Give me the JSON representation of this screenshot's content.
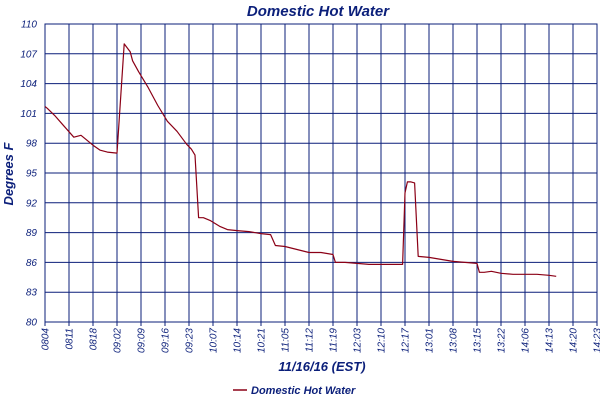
{
  "chart_data": {
    "type": "line",
    "title": "Domestic Hot Water",
    "xlabel": "11/16/16 (EST)",
    "ylabel": "Degrees F",
    "ylim": [
      80,
      110
    ],
    "yticks": [
      "80",
      "83",
      "86",
      "89",
      "92",
      "95",
      "98",
      "101",
      "104",
      "107",
      "110"
    ],
    "xticks": [
      "0804",
      "0811",
      "0818",
      "09:02",
      "09:09",
      "09:16",
      "09:23",
      "10:07",
      "10:14",
      "10:21",
      "11:05",
      "11:12",
      "11:19",
      "12:03",
      "12:10",
      "12:17",
      "13:01",
      "13:08",
      "13:15",
      "13:22",
      "14:06",
      "14:13",
      "14:20",
      "14:23"
    ],
    "grid": true,
    "legend_position": "bottom",
    "colors": {
      "line": "#8b0016",
      "grid": "#0b1f7a",
      "text": "#0b1f7a"
    },
    "series": [
      {
        "name": "Domestic Hot Water",
        "x": [
          0,
          0.1,
          0.4,
          0.8,
          1.2,
          1.5,
          2.0,
          2.3,
          2.6,
          3.0,
          3.3,
          3.55,
          3.65,
          3.9,
          4.3,
          4.7,
          5.1,
          5.5,
          5.9,
          6.1,
          6.25,
          6.4,
          6.6,
          6.9,
          7.3,
          7.6,
          8.0,
          8.5,
          9.0,
          9.4,
          9.6,
          10.0,
          10.5,
          11.0,
          11.5,
          12.0,
          12.1,
          12.5,
          13.0,
          13.5,
          14.0,
          14.4,
          14.9,
          15.0,
          15.1,
          15.25,
          15.4,
          15.55,
          16.0,
          16.5,
          17.0,
          17.5,
          18.0,
          18.1,
          18.3,
          18.6,
          19.0,
          19.5,
          20.0,
          20.5,
          21.0,
          21.3
        ],
        "values": [
          101.7,
          101.5,
          100.8,
          99.7,
          98.6,
          98.8,
          97.8,
          97.3,
          97.1,
          97.0,
          108.0,
          107.2,
          106.3,
          105.2,
          103.6,
          101.8,
          100.2,
          99.2,
          97.9,
          97.4,
          96.8,
          90.5,
          90.5,
          90.2,
          89.6,
          89.3,
          89.2,
          89.1,
          88.9,
          88.8,
          87.7,
          87.6,
          87.3,
          87.0,
          87.0,
          86.8,
          86.0,
          86.0,
          85.9,
          85.8,
          85.8,
          85.8,
          85.8,
          93.0,
          94.1,
          94.1,
          94.0,
          86.6,
          86.5,
          86.3,
          86.1,
          86.0,
          85.9,
          85.0,
          85.0,
          85.1,
          84.9,
          84.8,
          84.8,
          84.8,
          84.7,
          84.6
        ]
      }
    ]
  }
}
